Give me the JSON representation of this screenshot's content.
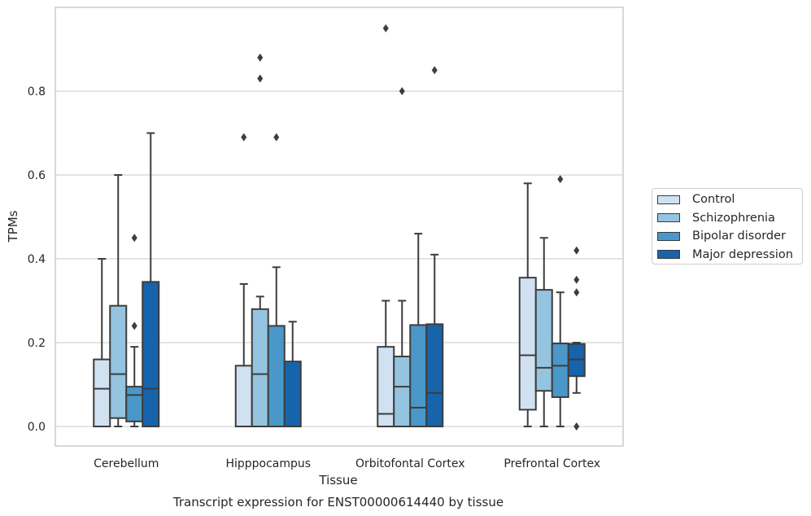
{
  "chart_data": {
    "type": "box",
    "title": "",
    "caption": "Transcript expression for ENST00000614440 by tissue",
    "xlabel": "Tissue",
    "ylabel": "TPMs",
    "ylim": [
      -0.045,
      0.995
    ],
    "yticks": [
      0.0,
      0.2,
      0.4,
      0.6,
      0.8
    ],
    "ytick_labels": [
      "0.0",
      "0.2",
      "0.4",
      "0.6",
      "0.8"
    ],
    "grid": "horizontal",
    "legend_position": "right, outside",
    "categories": [
      "Cerebellum",
      "Hipppocampus",
      "Orbitofontal Cortex",
      "Prefrontal Cortex"
    ],
    "series": [
      {
        "name": "Control",
        "color": "#d0e1f2",
        "boxes": [
          {
            "whisker_low": 0.0,
            "q1": 0.0,
            "median": 0.09,
            "q3": 0.16,
            "whisker_high": 0.4,
            "outliers": []
          },
          {
            "whisker_low": 0.0,
            "q1": 0.0,
            "median": 0.0,
            "q3": 0.145,
            "whisker_high": 0.34,
            "outliers": [
              0.69
            ]
          },
          {
            "whisker_low": 0.0,
            "q1": 0.0,
            "median": 0.03,
            "q3": 0.19,
            "whisker_high": 0.3,
            "outliers": [
              0.95
            ]
          },
          {
            "whisker_low": 0.0,
            "q1": 0.04,
            "median": 0.17,
            "q3": 0.355,
            "whisker_high": 0.58,
            "outliers": []
          }
        ]
      },
      {
        "name": "Schizophrenia",
        "color": "#94c4df",
        "boxes": [
          {
            "whisker_low": 0.0,
            "q1": 0.02,
            "median": 0.125,
            "q3": 0.288,
            "whisker_high": 0.6,
            "outliers": []
          },
          {
            "whisker_low": 0.0,
            "q1": 0.0,
            "median": 0.125,
            "q3": 0.28,
            "whisker_high": 0.31,
            "outliers": [
              0.83,
              0.88
            ]
          },
          {
            "whisker_low": 0.0,
            "q1": 0.0,
            "median": 0.095,
            "q3": 0.167,
            "whisker_high": 0.3,
            "outliers": [
              0.8
            ]
          },
          {
            "whisker_low": 0.0,
            "q1": 0.085,
            "median": 0.14,
            "q3": 0.326,
            "whisker_high": 0.45,
            "outliers": []
          }
        ]
      },
      {
        "name": "Bipolar disorder",
        "color": "#4a98c9",
        "boxes": [
          {
            "whisker_low": 0.0,
            "q1": 0.012,
            "median": 0.075,
            "q3": 0.095,
            "whisker_high": 0.19,
            "outliers": [
              0.24,
              0.45
            ]
          },
          {
            "whisker_low": 0.0,
            "q1": 0.0,
            "median": 0.0,
            "q3": 0.24,
            "whisker_high": 0.38,
            "outliers": [
              0.69
            ]
          },
          {
            "whisker_low": 0.0,
            "q1": 0.0,
            "median": 0.045,
            "q3": 0.242,
            "whisker_high": 0.46,
            "outliers": []
          },
          {
            "whisker_low": 0.0,
            "q1": 0.07,
            "median": 0.145,
            "q3": 0.198,
            "whisker_high": 0.32,
            "outliers": [
              0.59
            ]
          }
        ]
      },
      {
        "name": "Major depression",
        "color": "#1764ab",
        "boxes": [
          {
            "whisker_low": 0.0,
            "q1": 0.0,
            "median": 0.09,
            "q3": 0.345,
            "whisker_high": 0.7,
            "outliers": []
          },
          {
            "whisker_low": 0.0,
            "q1": 0.0,
            "median": 0.0,
            "q3": 0.155,
            "whisker_high": 0.25,
            "outliers": []
          },
          {
            "whisker_low": 0.0,
            "q1": 0.0,
            "median": 0.08,
            "q3": 0.244,
            "whisker_high": 0.41,
            "outliers": [
              0.85
            ]
          },
          {
            "whisker_low": 0.08,
            "q1": 0.12,
            "median": 0.16,
            "q3": 0.197,
            "whisker_high": 0.2,
            "outliers": [
              0.0,
              0.32,
              0.35,
              0.42
            ]
          }
        ]
      }
    ]
  }
}
